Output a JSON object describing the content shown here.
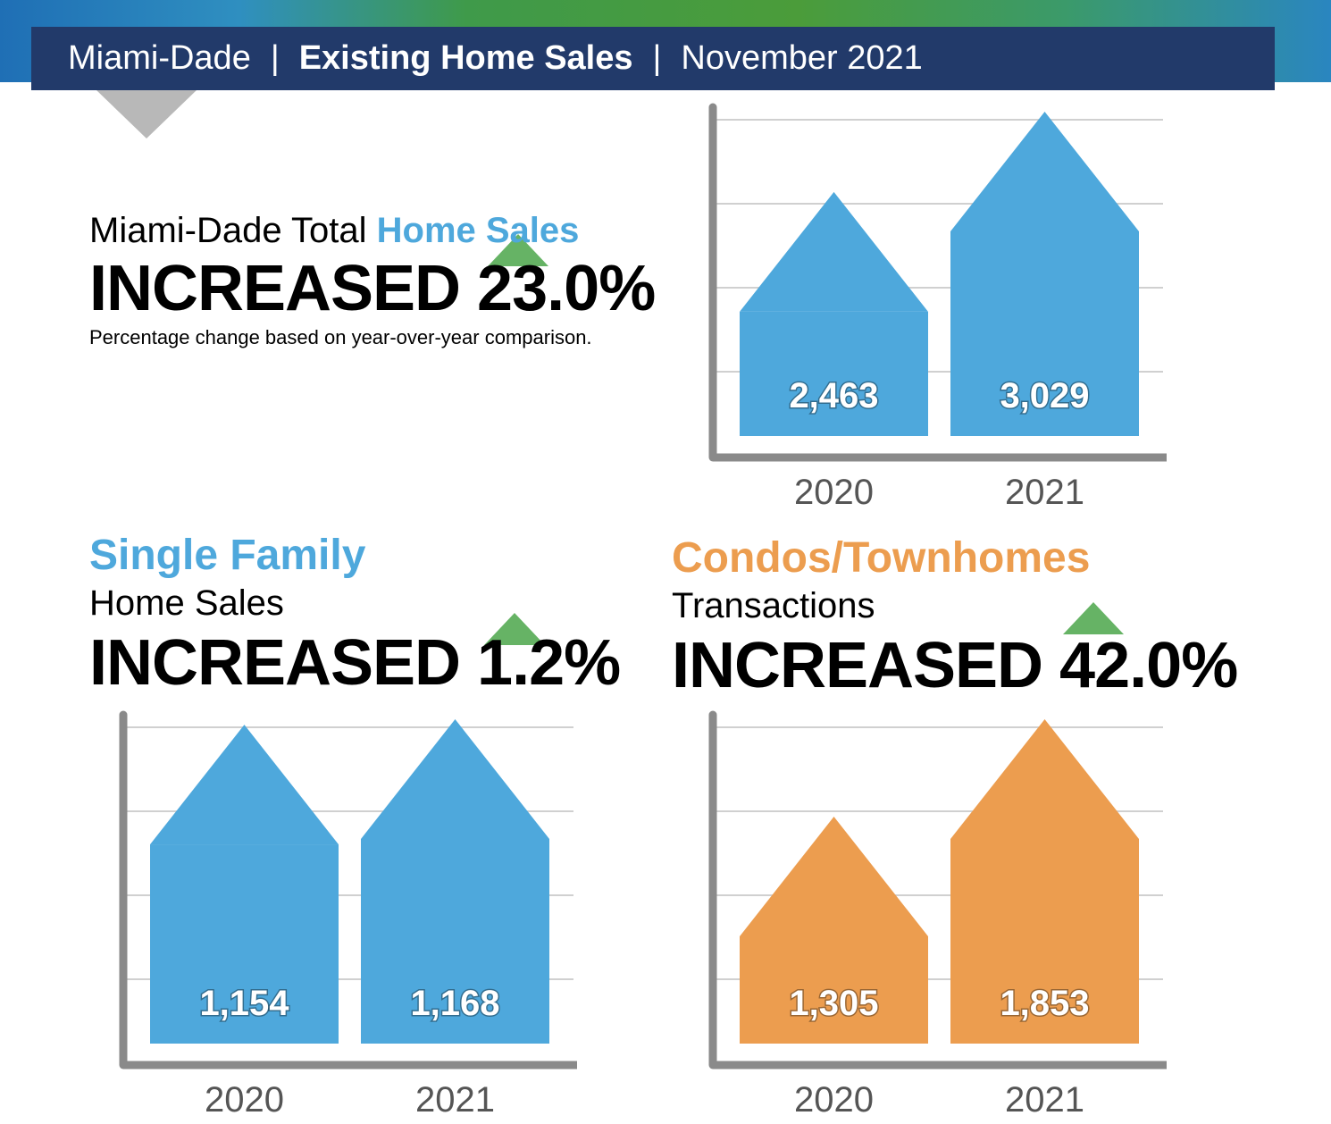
{
  "header": {
    "region": "Miami-Dade",
    "report": "Existing Home Sales",
    "period": "November 2021"
  },
  "total": {
    "lead": "Miami-Dade Total",
    "highlight": "Home Sales",
    "result": "INCREASED 23.0%",
    "note": "Percentage change based on year-over-year comparison."
  },
  "single_family": {
    "title": "Single Family",
    "subtitle": "Home Sales",
    "result": "INCREASED 1.2%"
  },
  "condos": {
    "title": "Condos/Townhomes",
    "subtitle": "Transactions",
    "result": "INCREASED 42.0%"
  },
  "colors": {
    "blue": "#4ea8dc",
    "orange": "#ec9d4f",
    "axis": "#8a8a8a",
    "grid": "#d0d0d0",
    "header": "#223a6a",
    "arrow": "#4ba64a"
  },
  "chart_data": [
    {
      "type": "bar",
      "title": "Miami-Dade Total Home Sales",
      "categories": [
        "2020",
        "2021"
      ],
      "values": [
        2463,
        3029
      ],
      "value_labels": [
        "2,463",
        "3,029"
      ],
      "color": "#4ea8dc",
      "grid": true
    },
    {
      "type": "bar",
      "title": "Single Family Home Sales",
      "categories": [
        "2020",
        "2021"
      ],
      "values": [
        1154,
        1168
      ],
      "value_labels": [
        "1,154",
        "1,168"
      ],
      "color": "#4ea8dc",
      "grid": true
    },
    {
      "type": "bar",
      "title": "Condos/Townhomes Transactions",
      "categories": [
        "2020",
        "2021"
      ],
      "values": [
        1305,
        1853
      ],
      "value_labels": [
        "1,305",
        "1,853"
      ],
      "color": "#ec9d4f",
      "grid": true
    }
  ]
}
